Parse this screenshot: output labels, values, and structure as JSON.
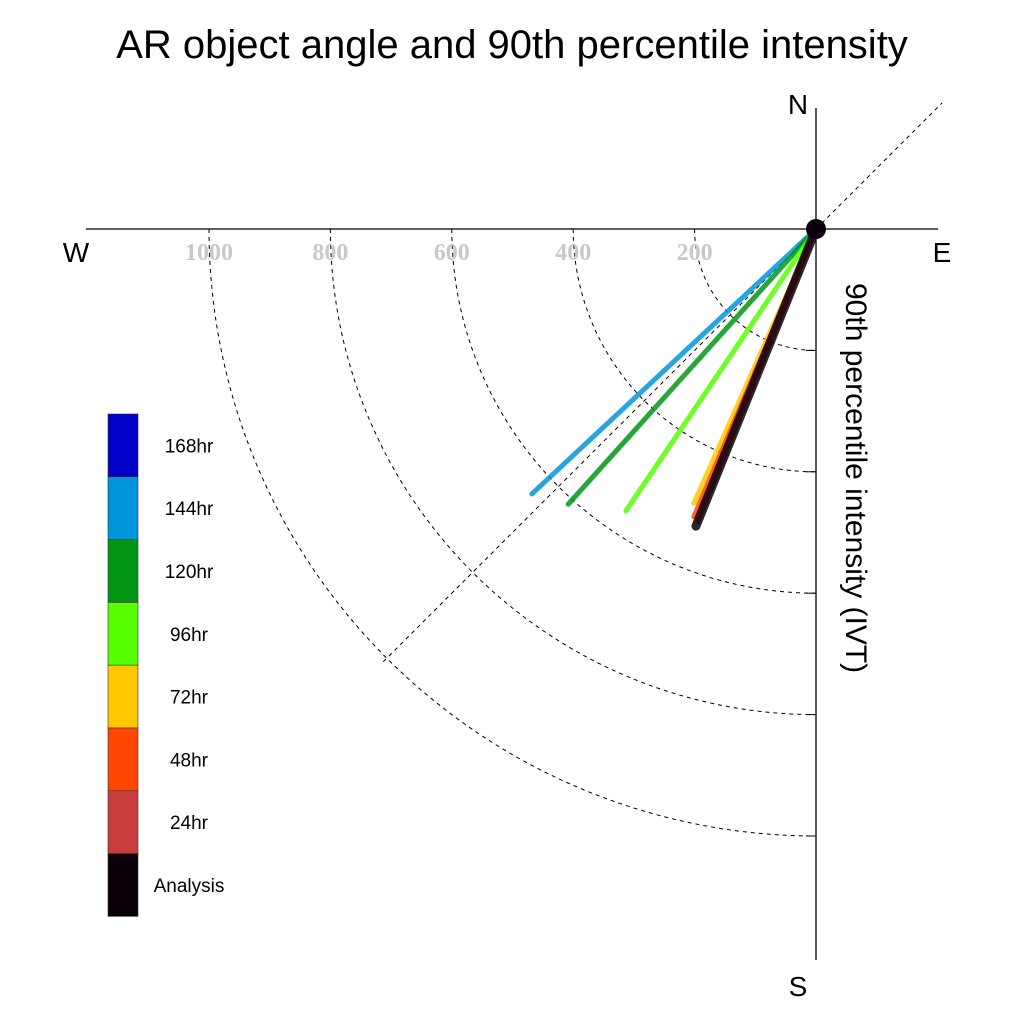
{
  "chart_data": {
    "type": "polar-vector",
    "title": "AR object angle and 90th percentile intensity",
    "ylabel": "90th percentile intensity (IVT)",
    "compass": {
      "north": "N",
      "south": "S",
      "east": "E",
      "west": "W"
    },
    "radial_ticks": [
      "1000",
      "800",
      "600",
      "400",
      "200"
    ],
    "radial_values": [
      1000,
      800,
      600,
      400,
      200
    ],
    "rmax": 1000,
    "series": [
      {
        "name": "168hr",
        "color": "#0000c8",
        "angle_deg": null,
        "intensity": null
      },
      {
        "name": "144hr",
        "color": "#0096dc",
        "angle_deg": 227,
        "intensity": 640
      },
      {
        "name": "120hr",
        "color": "#009614",
        "angle_deg": 222,
        "intensity": 610
      },
      {
        "name": "96hr",
        "color": "#55ff00",
        "angle_deg": 214,
        "intensity": 560
      },
      {
        "name": "72hr",
        "color": "#ffc800",
        "angle_deg": 204,
        "intensity": 495
      },
      {
        "name": "48hr",
        "color": "#ff4600",
        "angle_deg": 203,
        "intensity": 515
      },
      {
        "name": "24hr",
        "color": "#c83c3c",
        "angle_deg": 202,
        "intensity": 520
      },
      {
        "name": "Analysis",
        "color": "#0a0008",
        "angle_deg": 202,
        "intensity": 528
      }
    ]
  }
}
